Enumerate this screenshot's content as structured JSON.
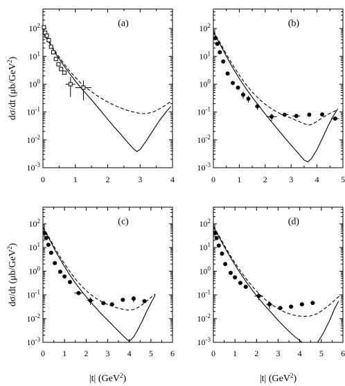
{
  "figure": {
    "ylabel_main": "dσ/dt  (μb/GeV",
    "ylabel_sup": "2",
    "ylabel_tail": ")",
    "xlabel_main": "|t|  (GeV",
    "xlabel_sup": "2",
    "xlabel_tail": ")"
  },
  "chart_data": [
    {
      "type": "scatter",
      "panel": "(a)",
      "xlim": [
        0,
        4
      ],
      "ylim": [
        0.001,
        500
      ],
      "yscale": "log",
      "xticks": [
        "0",
        "1",
        "2",
        "3",
        "4"
      ],
      "yticks": [
        {
          "base": "10",
          "exp": "2"
        },
        {
          "base": "10",
          "exp": "1"
        },
        {
          "base": "10",
          "exp": "0"
        },
        {
          "base": "10",
          "exp": "-1"
        },
        {
          "base": "10",
          "exp": "-2"
        },
        {
          "base": "10",
          "exp": "-3"
        }
      ],
      "marker": "open",
      "points": [
        {
          "x": 0.03,
          "y": 110,
          "xerr": 0.03,
          "yerr": 0
        },
        {
          "x": 0.07,
          "y": 70,
          "xerr": 0.03,
          "yerr": 0
        },
        {
          "x": 0.12,
          "y": 55,
          "xerr": 0.03,
          "yerr": 0
        },
        {
          "x": 0.18,
          "y": 38,
          "xerr": 0.03,
          "yerr": 0
        },
        {
          "x": 0.25,
          "y": 22,
          "xerr": 0.03,
          "yerr": 0
        },
        {
          "x": 0.32,
          "y": 14,
          "xerr": 0.03,
          "yerr": 0
        },
        {
          "x": 0.4,
          "y": 8,
          "xerr": 0.04,
          "yerr": 0
        },
        {
          "x": 0.48,
          "y": 5.2,
          "xerr": 0.04,
          "yerr": 0
        },
        {
          "x": 0.56,
          "y": 3.5,
          "xerr": 0.05,
          "yerr": 0
        },
        {
          "x": 0.66,
          "y": 2.6,
          "xerr": 0.06,
          "yerr": 0
        },
        {
          "x": 0.85,
          "y": 1.0,
          "xerr": 0.15,
          "yerr": 0.8
        },
        {
          "x": 1.25,
          "y": 0.75,
          "xerr": 0.25,
          "yerr": 0.6
        }
      ],
      "solid": [
        [
          0,
          70
        ],
        [
          0.2,
          30
        ],
        [
          0.4,
          12
        ],
        [
          0.6,
          5.5
        ],
        [
          0.8,
          2.6
        ],
        [
          1.0,
          1.3
        ],
        [
          1.2,
          0.68
        ],
        [
          1.4,
          0.37
        ],
        [
          1.6,
          0.2
        ],
        [
          1.8,
          0.105
        ],
        [
          2.0,
          0.055
        ],
        [
          2.2,
          0.029
        ],
        [
          2.4,
          0.016
        ],
        [
          2.6,
          0.0085
        ],
        [
          2.8,
          0.0047
        ],
        [
          2.9,
          0.0038
        ],
        [
          3.0,
          0.0045
        ],
        [
          3.2,
          0.0095
        ],
        [
          3.4,
          0.022
        ],
        [
          3.6,
          0.05
        ],
        [
          3.8,
          0.1
        ],
        [
          3.95,
          0.16
        ]
      ],
      "dashed": [
        [
          0,
          75
        ],
        [
          0.2,
          33
        ],
        [
          0.4,
          14
        ],
        [
          0.6,
          6.5
        ],
        [
          0.8,
          3.2
        ],
        [
          1.0,
          1.75
        ],
        [
          1.2,
          1.0
        ],
        [
          1.4,
          0.65
        ],
        [
          1.6,
          0.44
        ],
        [
          1.8,
          0.31
        ],
        [
          2.0,
          0.23
        ],
        [
          2.2,
          0.175
        ],
        [
          2.4,
          0.14
        ],
        [
          2.6,
          0.115
        ],
        [
          2.8,
          0.1
        ],
        [
          3.0,
          0.088
        ],
        [
          3.2,
          0.088
        ],
        [
          3.4,
          0.1
        ],
        [
          3.6,
          0.13
        ],
        [
          3.8,
          0.18
        ],
        [
          3.95,
          0.24
        ]
      ]
    },
    {
      "type": "scatter",
      "panel": "(b)",
      "xlim": [
        0,
        5
      ],
      "ylim": [
        0.001,
        500
      ],
      "yscale": "log",
      "xticks": [
        "0",
        "1",
        "2",
        "3",
        "4",
        "5"
      ],
      "yticks": [
        {
          "base": "10",
          "exp": "2"
        },
        {
          "base": "10",
          "exp": "1"
        },
        {
          "base": "10",
          "exp": "0"
        },
        {
          "base": "10",
          "exp": "-1"
        },
        {
          "base": "10",
          "exp": "-2"
        },
        {
          "base": "10",
          "exp": "-3"
        }
      ],
      "marker": "filled",
      "points": [
        {
          "x": 0.08,
          "y": 45,
          "xerr": 0,
          "yerr": 0
        },
        {
          "x": 0.15,
          "y": 28,
          "xerr": 0,
          "yerr": 0
        },
        {
          "x": 0.25,
          "y": 14,
          "xerr": 0,
          "yerr": 0
        },
        {
          "x": 0.38,
          "y": 6.5,
          "xerr": 0,
          "yerr": 0
        },
        {
          "x": 0.55,
          "y": 2.4,
          "xerr": 0,
          "yerr": 0
        },
        {
          "x": 0.75,
          "y": 1.1,
          "xerr": 0.06,
          "yerr": 0
        },
        {
          "x": 0.95,
          "y": 0.75,
          "xerr": 0.06,
          "yerr": 0
        },
        {
          "x": 1.15,
          "y": 0.42,
          "xerr": 0.07,
          "yerr": 0.12
        },
        {
          "x": 1.35,
          "y": 0.3,
          "xerr": 0.07,
          "yerr": 0.08
        },
        {
          "x": 1.7,
          "y": 0.16,
          "xerr": 0.1,
          "yerr": 0.04
        },
        {
          "x": 2.25,
          "y": 0.068,
          "xerr": 0.2,
          "yerr": 0.02
        },
        {
          "x": 2.75,
          "y": 0.08,
          "xerr": 0.15,
          "yerr": 0
        },
        {
          "x": 3.2,
          "y": 0.072,
          "xerr": 0.15,
          "yerr": 0
        },
        {
          "x": 3.7,
          "y": 0.08,
          "xerr": 0,
          "yerr": 0
        },
        {
          "x": 4.2,
          "y": 0.082,
          "xerr": 0,
          "yerr": 0
        },
        {
          "x": 4.7,
          "y": 0.058,
          "xerr": 0.15,
          "yerr": 0
        }
      ],
      "solid": [
        [
          0,
          75
        ],
        [
          0.25,
          28
        ],
        [
          0.5,
          10
        ],
        [
          0.75,
          3.8
        ],
        [
          1.0,
          1.6
        ],
        [
          1.25,
          0.72
        ],
        [
          1.5,
          0.34
        ],
        [
          1.75,
          0.17
        ],
        [
          2.0,
          0.085
        ],
        [
          2.25,
          0.044
        ],
        [
          2.5,
          0.023
        ],
        [
          2.75,
          0.012
        ],
        [
          3.0,
          0.0065
        ],
        [
          3.25,
          0.0035
        ],
        [
          3.5,
          0.0019
        ],
        [
          3.65,
          0.0016
        ],
        [
          3.8,
          0.0022
        ],
        [
          4.0,
          0.0045
        ],
        [
          4.2,
          0.011
        ],
        [
          4.4,
          0.028
        ],
        [
          4.6,
          0.065
        ],
        [
          4.8,
          0.13
        ]
      ],
      "dashed": [
        [
          0,
          80
        ],
        [
          0.25,
          32
        ],
        [
          0.5,
          12
        ],
        [
          0.75,
          4.8
        ],
        [
          1.0,
          2.1
        ],
        [
          1.25,
          1.0
        ],
        [
          1.5,
          0.52
        ],
        [
          1.75,
          0.3
        ],
        [
          2.0,
          0.19
        ],
        [
          2.25,
          0.13
        ],
        [
          2.5,
          0.095
        ],
        [
          2.75,
          0.075
        ],
        [
          3.0,
          0.06
        ],
        [
          3.25,
          0.048
        ],
        [
          3.5,
          0.038
        ],
        [
          3.65,
          0.034
        ],
        [
          3.8,
          0.036
        ],
        [
          4.0,
          0.046
        ],
        [
          4.2,
          0.062
        ],
        [
          4.4,
          0.08
        ],
        [
          4.6,
          0.1
        ],
        [
          4.8,
          0.12
        ]
      ]
    },
    {
      "type": "scatter",
      "panel": "(c)",
      "xlim": [
        0,
        6
      ],
      "ylim": [
        0.001,
        500
      ],
      "yscale": "log",
      "xticks": [
        "0",
        "1",
        "2",
        "3",
        "4",
        "5",
        "6"
      ],
      "yticks": [
        {
          "base": "10",
          "exp": "2"
        },
        {
          "base": "10",
          "exp": "1"
        },
        {
          "base": "10",
          "exp": "0"
        },
        {
          "base": "10",
          "exp": "-1"
        },
        {
          "base": "10",
          "exp": "-2"
        },
        {
          "base": "10",
          "exp": "-3"
        }
      ],
      "marker": "filled",
      "points": [
        {
          "x": 0.08,
          "y": 40,
          "xerr": 0,
          "yerr": 0
        },
        {
          "x": 0.15,
          "y": 25,
          "xerr": 0,
          "yerr": 0
        },
        {
          "x": 0.25,
          "y": 13,
          "xerr": 0,
          "yerr": 0
        },
        {
          "x": 0.38,
          "y": 6,
          "xerr": 0,
          "yerr": 0
        },
        {
          "x": 0.55,
          "y": 2.2,
          "xerr": 0,
          "yerr": 0
        },
        {
          "x": 0.8,
          "y": 0.95,
          "xerr": 0.05,
          "yerr": 0
        },
        {
          "x": 1.0,
          "y": 0.6,
          "xerr": 0.05,
          "yerr": 0
        },
        {
          "x": 1.25,
          "y": 0.35,
          "xerr": 0.07,
          "yerr": 0
        },
        {
          "x": 1.65,
          "y": 0.12,
          "xerr": 0.2,
          "yerr": 0
        },
        {
          "x": 2.2,
          "y": 0.058,
          "xerr": 0.15,
          "yerr": 0.02
        },
        {
          "x": 2.8,
          "y": 0.045,
          "xerr": 0.1,
          "yerr": 0
        },
        {
          "x": 3.2,
          "y": 0.04,
          "xerr": 0.1,
          "yerr": 0
        },
        {
          "x": 3.7,
          "y": 0.062,
          "xerr": 0.1,
          "yerr": 0
        },
        {
          "x": 4.2,
          "y": 0.07,
          "xerr": 0.1,
          "yerr": 0.02
        },
        {
          "x": 4.7,
          "y": 0.055,
          "xerr": 0.1,
          "yerr": 0
        }
      ],
      "solid": [
        [
          0,
          70
        ],
        [
          0.3,
          22
        ],
        [
          0.6,
          6.5
        ],
        [
          0.9,
          2.2
        ],
        [
          1.2,
          0.8
        ],
        [
          1.5,
          0.32
        ],
        [
          1.8,
          0.14
        ],
        [
          2.1,
          0.065
        ],
        [
          2.4,
          0.032
        ],
        [
          2.7,
          0.016
        ],
        [
          3.0,
          0.0085
        ],
        [
          3.3,
          0.0045
        ],
        [
          3.6,
          0.0024
        ],
        [
          3.9,
          0.0013
        ],
        [
          4.0,
          0.0011
        ],
        [
          4.2,
          0.0017
        ],
        [
          4.4,
          0.0035
        ],
        [
          4.6,
          0.008
        ],
        [
          4.8,
          0.02
        ],
        [
          5.0,
          0.045
        ],
        [
          5.2,
          0.1
        ]
      ],
      "dashed": [
        [
          0,
          75
        ],
        [
          0.3,
          25
        ],
        [
          0.6,
          8
        ],
        [
          0.9,
          2.8
        ],
        [
          1.2,
          1.1
        ],
        [
          1.5,
          0.47
        ],
        [
          1.8,
          0.23
        ],
        [
          2.1,
          0.125
        ],
        [
          2.4,
          0.078
        ],
        [
          2.7,
          0.053
        ],
        [
          3.0,
          0.039
        ],
        [
          3.3,
          0.031
        ],
        [
          3.6,
          0.026
        ],
        [
          3.9,
          0.023
        ],
        [
          4.2,
          0.024
        ],
        [
          4.5,
          0.033
        ],
        [
          4.8,
          0.055
        ],
        [
          5.0,
          0.078
        ],
        [
          5.2,
          0.11
        ]
      ]
    },
    {
      "type": "scatter",
      "panel": "(d)",
      "xlim": [
        0,
        6
      ],
      "ylim": [
        0.001,
        500
      ],
      "yscale": "log",
      "xticks": [
        "0",
        "1",
        "2",
        "3",
        "4",
        "5",
        "6"
      ],
      "yticks": [
        {
          "base": "10",
          "exp": "2"
        },
        {
          "base": "10",
          "exp": "1"
        },
        {
          "base": "10",
          "exp": "0"
        },
        {
          "base": "10",
          "exp": "-1"
        },
        {
          "base": "10",
          "exp": "-2"
        },
        {
          "base": "10",
          "exp": "-3"
        }
      ],
      "marker": "filled",
      "points": [
        {
          "x": 0.08,
          "y": 40,
          "xerr": 0,
          "yerr": 0
        },
        {
          "x": 0.15,
          "y": 25,
          "xerr": 0,
          "yerr": 0
        },
        {
          "x": 0.25,
          "y": 12,
          "xerr": 0,
          "yerr": 0
        },
        {
          "x": 0.4,
          "y": 5.5,
          "xerr": 0,
          "yerr": 0
        },
        {
          "x": 0.55,
          "y": 2.0,
          "xerr": 0,
          "yerr": 0
        },
        {
          "x": 0.8,
          "y": 0.85,
          "xerr": 0.05,
          "yerr": 0
        },
        {
          "x": 1.0,
          "y": 0.55,
          "xerr": 0.05,
          "yerr": 0
        },
        {
          "x": 1.25,
          "y": 0.32,
          "xerr": 0.05,
          "yerr": 0
        },
        {
          "x": 1.5,
          "y": 0.22,
          "xerr": 0.1,
          "yerr": 0
        },
        {
          "x": 2.1,
          "y": 0.09,
          "xerr": 0.2,
          "yerr": 0.03
        },
        {
          "x": 2.6,
          "y": 0.04,
          "xerr": 0.15,
          "yerr": 0.015
        },
        {
          "x": 3.1,
          "y": 0.028,
          "xerr": 0.1,
          "yerr": 0
        },
        {
          "x": 3.6,
          "y": 0.032,
          "xerr": 0.1,
          "yerr": 0
        },
        {
          "x": 4.1,
          "y": 0.04,
          "xerr": 0.1,
          "yerr": 0
        },
        {
          "x": 4.6,
          "y": 0.046,
          "xerr": 0.1,
          "yerr": 0
        }
      ],
      "solid": [
        [
          0,
          75
        ],
        [
          0.3,
          24
        ],
        [
          0.6,
          7.5
        ],
        [
          0.9,
          2.6
        ],
        [
          1.2,
          0.95
        ],
        [
          1.5,
          0.38
        ],
        [
          1.8,
          0.16
        ],
        [
          2.1,
          0.072
        ],
        [
          2.4,
          0.034
        ],
        [
          2.7,
          0.017
        ],
        [
          3.0,
          0.0085
        ],
        [
          3.3,
          0.0044
        ],
        [
          3.6,
          0.0024
        ],
        [
          3.9,
          0.0014
        ],
        [
          4.2,
          0.00085
        ],
        [
          4.5,
          0.0006
        ],
        [
          4.8,
          0.0009
        ],
        [
          5.1,
          0.0025
        ],
        [
          5.4,
          0.009
        ],
        [
          5.6,
          0.025
        ],
        [
          5.8,
          0.055
        ]
      ],
      "dashed": [
        [
          0,
          80
        ],
        [
          0.3,
          27
        ],
        [
          0.6,
          8.8
        ],
        [
          0.9,
          3.1
        ],
        [
          1.2,
          1.2
        ],
        [
          1.5,
          0.5
        ],
        [
          1.8,
          0.23
        ],
        [
          2.1,
          0.115
        ],
        [
          2.4,
          0.064
        ],
        [
          2.7,
          0.039
        ],
        [
          3.0,
          0.026
        ],
        [
          3.3,
          0.019
        ],
        [
          3.6,
          0.015
        ],
        [
          3.9,
          0.013
        ],
        [
          4.2,
          0.0125
        ],
        [
          4.5,
          0.013
        ],
        [
          4.8,
          0.016
        ],
        [
          5.1,
          0.024
        ],
        [
          5.4,
          0.04
        ],
        [
          5.7,
          0.07
        ],
        [
          5.85,
          0.09
        ]
      ]
    }
  ]
}
